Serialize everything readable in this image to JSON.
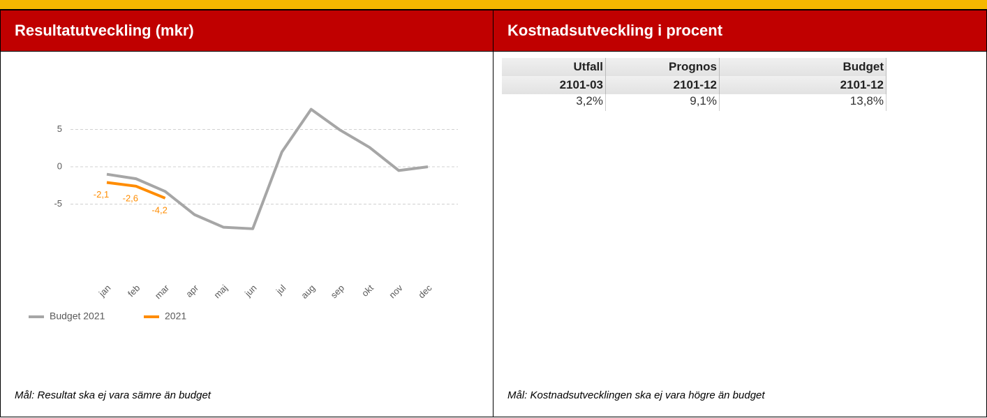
{
  "left_panel": {
    "title": "Resultatutveckling (mkr)",
    "note": "Mål: Resultat ska ej vara sämre än budget"
  },
  "chart_data": {
    "type": "line",
    "categories": [
      "jan",
      "feb",
      "mar",
      "apr",
      "maj",
      "jun",
      "jul",
      "aug",
      "sep",
      "okt",
      "nov",
      "dec"
    ],
    "series": [
      {
        "name": "Budget 2021",
        "color": "#a6a6a6",
        "values": [
          -1.0,
          -1.6,
          -3.3,
          -6.4,
          -8.1,
          -8.3,
          2.0,
          7.7,
          4.9,
          2.6,
          -0.5,
          0.0
        ]
      },
      {
        "name": "2021",
        "color": "#ff8c00",
        "values": [
          -2.1,
          -2.6,
          -4.2,
          null,
          null,
          null,
          null,
          null,
          null,
          null,
          null,
          null
        ],
        "value_labels": [
          "-2,1",
          "-2,6",
          "-4,2",
          null,
          null,
          null,
          null,
          null,
          null,
          null,
          null,
          null
        ]
      }
    ],
    "ylim": [
      -10,
      10
    ],
    "yticks": [
      -5,
      0,
      5
    ],
    "grid": true,
    "legend": "bottom-left"
  },
  "right_panel": {
    "title": "Kostnadsutveckling i procent",
    "note": "Mål: Kostnadsutvecklingen ska ej vara högre än budget",
    "table": {
      "header": [
        [
          "Utfall",
          "Prognos",
          "Budget"
        ],
        [
          "2101-03",
          "2101-12",
          "2101-12"
        ]
      ],
      "rows": [
        [
          "3,2%",
          "9,1%",
          "13,8%"
        ]
      ]
    }
  }
}
